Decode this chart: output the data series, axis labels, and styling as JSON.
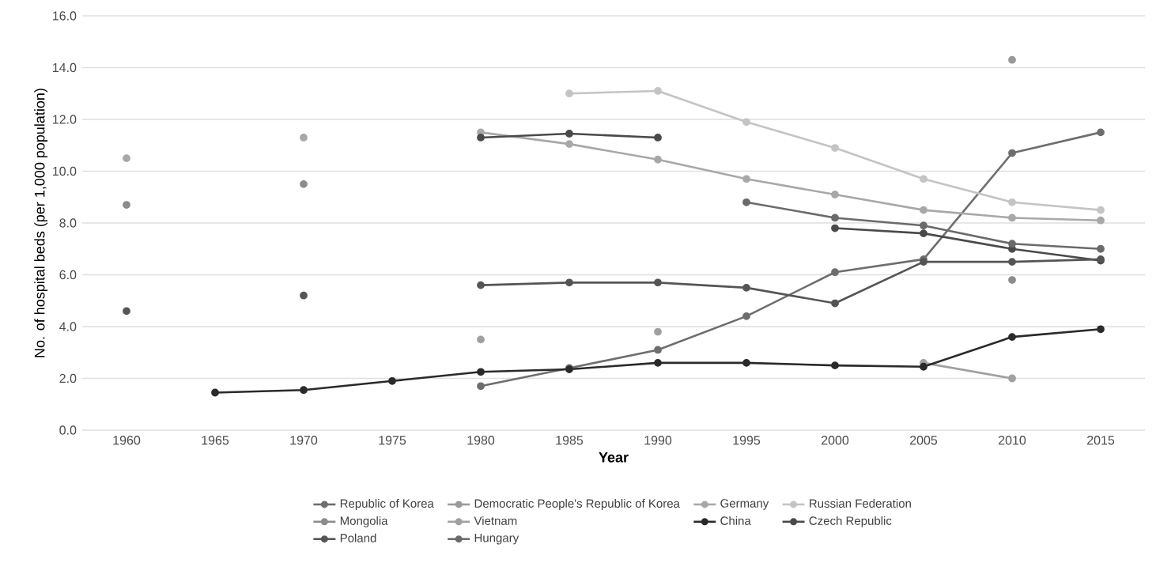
{
  "chart_data": {
    "type": "line",
    "xlabel": "Year",
    "ylabel": "No. of hospital beds (per 1,000 population)",
    "categories": [
      "1960",
      "1965",
      "1970",
      "1975",
      "1980",
      "1985",
      "1990",
      "1995",
      "2000",
      "2005",
      "2010",
      "2015"
    ],
    "series": [
      {
        "name": "Republic of Korea",
        "color": "#6e6e6e",
        "values": [
          null,
          null,
          null,
          null,
          1.7,
          2.4,
          3.1,
          4.4,
          6.1,
          6.6,
          10.7,
          11.5
        ]
      },
      {
        "name": "Democratic People's Republic of Korea",
        "type": "scatter",
        "color": "#9a9a9a",
        "values": [
          null,
          null,
          null,
          null,
          null,
          null,
          null,
          null,
          null,
          null,
          14.3,
          null
        ]
      },
      {
        "name": "Germany",
        "color": "#a8a8a8",
        "values": [
          10.5,
          null,
          11.3,
          null,
          11.5,
          11.05,
          10.45,
          9.7,
          9.1,
          8.5,
          8.2,
          8.1
        ]
      },
      {
        "name": "Russian Federation",
        "color": "#c4c4c4",
        "values": [
          null,
          null,
          null,
          null,
          null,
          13.0,
          13.1,
          11.9,
          10.9,
          9.7,
          8.8,
          8.5
        ]
      },
      {
        "name": "Mongolia",
        "type": "scatter",
        "color": "#8c8c8c",
        "values": [
          8.7,
          null,
          9.5,
          null,
          null,
          null,
          null,
          null,
          null,
          null,
          5.8,
          null
        ]
      },
      {
        "name": "Vietnam",
        "color": "#a0a0a0",
        "values": [
          null,
          null,
          null,
          null,
          3.5,
          null,
          3.8,
          null,
          null,
          2.6,
          2.0,
          null
        ]
      },
      {
        "name": "China",
        "color": "#2a2a2a",
        "values": [
          null,
          1.45,
          1.55,
          1.9,
          2.25,
          2.35,
          2.6,
          2.6,
          2.5,
          2.45,
          3.6,
          3.9
        ]
      },
      {
        "name": "Czech Republic",
        "color": "#4a4a4a",
        "values": [
          null,
          null,
          null,
          null,
          11.3,
          11.45,
          11.3,
          null,
          7.8,
          7.6,
          7.0,
          6.55
        ]
      },
      {
        "name": "Poland",
        "color": "#555555",
        "values": [
          4.6,
          null,
          5.2,
          null,
          5.6,
          5.7,
          5.7,
          5.5,
          4.9,
          6.5,
          6.5,
          6.6
        ]
      },
      {
        "name": "Hungary",
        "color": "#6a6a6a",
        "values": [
          null,
          null,
          null,
          null,
          null,
          null,
          null,
          8.8,
          8.2,
          7.9,
          7.2,
          7.0
        ]
      }
    ],
    "ylim": [
      0,
      16
    ],
    "yticks": [
      {
        "value": 0,
        "label": "0.0"
      },
      {
        "value": 2,
        "label": "2.0"
      },
      {
        "value": 4,
        "label": "4.0"
      },
      {
        "value": 6,
        "label": "6.0"
      },
      {
        "value": 8,
        "label": "8.0"
      },
      {
        "value": 10,
        "label": "10.0"
      },
      {
        "value": 12,
        "label": "12.0"
      },
      {
        "value": 14,
        "label": "14.0"
      },
      {
        "value": 16,
        "label": "16.0"
      }
    ],
    "grid": "y",
    "legend": "bottom",
    "marker": "circle",
    "line_style": "solid"
  }
}
